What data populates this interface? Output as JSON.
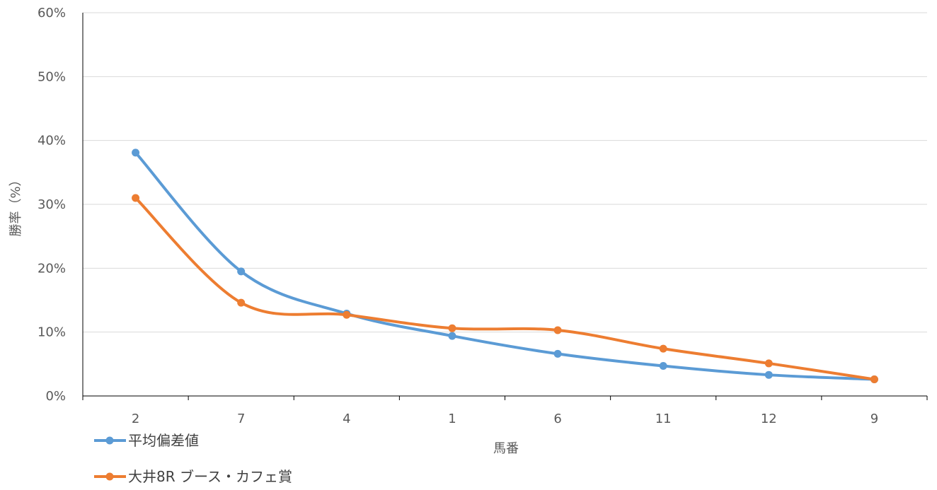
{
  "chart_data": {
    "type": "line",
    "smooth": true,
    "categories": [
      "2",
      "7",
      "4",
      "1",
      "6",
      "11",
      "12",
      "9"
    ],
    "xlabel": "馬番",
    "ylabel": "勝率（%）",
    "ylim": [
      0,
      60
    ],
    "yticks": [
      0,
      10,
      20,
      30,
      40,
      50,
      60
    ],
    "ytick_suffix": "%",
    "grid": "horizontal",
    "legend_position": "bottom-left",
    "series": [
      {
        "name": "平均偏差値",
        "color": "#5B9BD5",
        "values": [
          38.1,
          19.5,
          12.9,
          9.4,
          6.6,
          4.7,
          3.3,
          2.6
        ]
      },
      {
        "name": "大井8R ブース・カフェ賞",
        "color": "#ED7D31",
        "values": [
          31.0,
          14.6,
          12.7,
          10.6,
          10.3,
          7.4,
          5.1,
          2.6
        ]
      }
    ]
  }
}
